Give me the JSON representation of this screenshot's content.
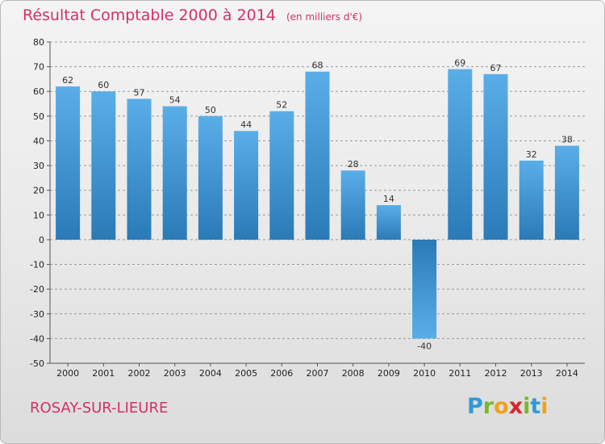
{
  "header": {
    "title": "Résultat Comptable 2000 à 2014",
    "subtitle": "(en milliers d'€)"
  },
  "footer": {
    "commune": "ROSAY-SUR-LIEURE",
    "logo": {
      "letters": [
        "P",
        "r",
        "o",
        "x",
        "i",
        "t",
        "i"
      ],
      "colors": [
        "#2e9bd6",
        "#7ab828",
        "#f0a020",
        "#d9262a",
        "#7ab828",
        "#2e9bd6",
        "#f0a020"
      ]
    }
  },
  "colors": {
    "bar_top": "#5aaee8",
    "bar_bottom": "#2a7ab8",
    "grid": "#9a9a9a",
    "axis": "#555555"
  },
  "chart_data": {
    "type": "bar",
    "title": "Résultat Comptable 2000 à 2014",
    "subtitle": "(en milliers d'€)",
    "categories": [
      "2000",
      "2001",
      "2002",
      "2003",
      "2004",
      "2005",
      "2006",
      "2007",
      "2008",
      "2009",
      "2010",
      "2011",
      "2012",
      "2013",
      "2014"
    ],
    "values": [
      62,
      60,
      57,
      54,
      50,
      44,
      52,
      68,
      28,
      14,
      -40,
      69,
      67,
      32,
      38
    ],
    "ylim": [
      -50,
      80
    ],
    "yticks": [
      80,
      70,
      60,
      50,
      40,
      30,
      20,
      10,
      0,
      -10,
      -20,
      -30,
      -40,
      -50
    ],
    "grid": true,
    "grid_style": "dashed",
    "data_labels": true
  }
}
